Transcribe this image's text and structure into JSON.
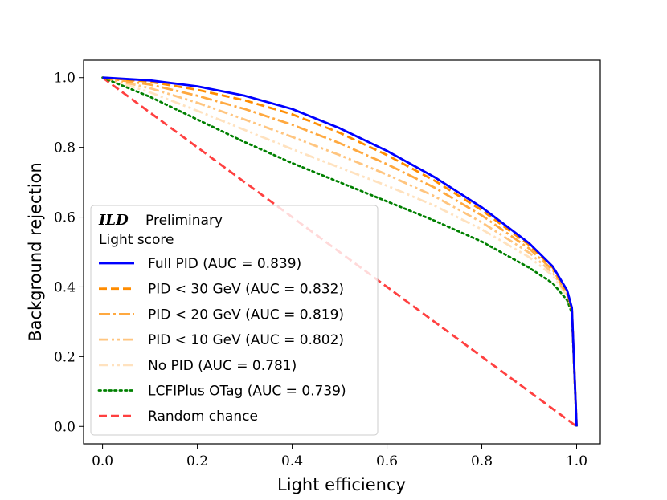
{
  "chart_data": {
    "type": "line",
    "title": "",
    "xlabel": "Light efficiency",
    "ylabel": "Background rejection",
    "xlim": [
      -0.04,
      1.05
    ],
    "ylim": [
      -0.05,
      1.05
    ],
    "xticks": [
      0.0,
      0.2,
      0.4,
      0.6,
      0.8,
      1.0
    ],
    "yticks": [
      0.0,
      0.2,
      0.4,
      0.6,
      0.8,
      1.0
    ],
    "xtick_labels": [
      "0.0",
      "0.2",
      "0.4",
      "0.6",
      "0.8",
      "1.0"
    ],
    "ytick_labels": [
      "0.0",
      "0.2",
      "0.4",
      "0.6",
      "0.8",
      "1.0"
    ],
    "grid": false,
    "legend": {
      "placement": "lower-left",
      "brand": "ILD",
      "brand_suffix": "Preliminary",
      "subtitle": "Light score"
    },
    "series": [
      {
        "name": "Full PID (AUC = 0.839)",
        "color": "#0000ff",
        "dash": "solid",
        "opacity": 1.0,
        "x": [
          0.0,
          0.1,
          0.2,
          0.3,
          0.4,
          0.5,
          0.6,
          0.7,
          0.8,
          0.9,
          0.95,
          0.98,
          0.99,
          1.0
        ],
        "y": [
          1.0,
          0.992,
          0.975,
          0.948,
          0.91,
          0.855,
          0.79,
          0.715,
          0.628,
          0.525,
          0.458,
          0.39,
          0.34,
          0.0
        ]
      },
      {
        "name": "PID < 30 GeV (AUC = 0.832)",
        "color": "#ff8c00",
        "dash": "dashed",
        "opacity": 1.0,
        "x": [
          0.0,
          0.1,
          0.2,
          0.3,
          0.4,
          0.5,
          0.6,
          0.7,
          0.8,
          0.9,
          0.95,
          0.98,
          0.99,
          1.0
        ],
        "y": [
          1.0,
          0.988,
          0.965,
          0.935,
          0.895,
          0.842,
          0.778,
          0.705,
          0.62,
          0.52,
          0.455,
          0.388,
          0.338,
          0.0
        ]
      },
      {
        "name": "PID < 20 GeV (AUC = 0.819)",
        "color": "#ff8c00",
        "dash": "dashdot",
        "opacity": 0.75,
        "x": [
          0.0,
          0.1,
          0.2,
          0.3,
          0.4,
          0.5,
          0.6,
          0.7,
          0.8,
          0.9,
          0.95,
          0.98,
          0.99,
          1.0
        ],
        "y": [
          1.0,
          0.98,
          0.948,
          0.91,
          0.865,
          0.812,
          0.752,
          0.685,
          0.605,
          0.51,
          0.448,
          0.384,
          0.336,
          0.0
        ]
      },
      {
        "name": "PID < 10 GeV (AUC = 0.802)",
        "color": "#ff8c00",
        "dash": "dashdotdot",
        "opacity": 0.5,
        "x": [
          0.0,
          0.1,
          0.2,
          0.3,
          0.4,
          0.5,
          0.6,
          0.7,
          0.8,
          0.9,
          0.95,
          0.98,
          0.99,
          1.0
        ],
        "y": [
          1.0,
          0.97,
          0.928,
          0.88,
          0.83,
          0.778,
          0.722,
          0.66,
          0.585,
          0.498,
          0.44,
          0.378,
          0.333,
          0.0
        ]
      },
      {
        "name": "No PID (AUC = 0.781)",
        "color": "#ff8c00",
        "dash": "dashdotdot",
        "opacity": 0.25,
        "x": [
          0.0,
          0.1,
          0.2,
          0.3,
          0.4,
          0.5,
          0.6,
          0.7,
          0.8,
          0.9,
          0.95,
          0.98,
          0.99,
          1.0
        ],
        "y": [
          1.0,
          0.958,
          0.905,
          0.85,
          0.795,
          0.742,
          0.69,
          0.633,
          0.565,
          0.485,
          0.432,
          0.373,
          0.33,
          0.0
        ]
      },
      {
        "name": "LCFIPlus OTag (AUC = 0.739)",
        "color": "#008000",
        "dash": "dotted",
        "opacity": 1.0,
        "x": [
          0.0,
          0.1,
          0.2,
          0.3,
          0.4,
          0.5,
          0.6,
          0.7,
          0.8,
          0.9,
          0.95,
          0.98,
          0.99,
          1.0
        ],
        "y": [
          1.0,
          0.945,
          0.88,
          0.815,
          0.755,
          0.7,
          0.645,
          0.59,
          0.53,
          0.455,
          0.41,
          0.362,
          0.325,
          0.0
        ]
      },
      {
        "name": "Random chance",
        "color": "#ff0000",
        "dash": "dashed",
        "opacity": 0.75,
        "x": [
          0.0,
          1.0
        ],
        "y": [
          1.0,
          0.0
        ]
      }
    ]
  }
}
